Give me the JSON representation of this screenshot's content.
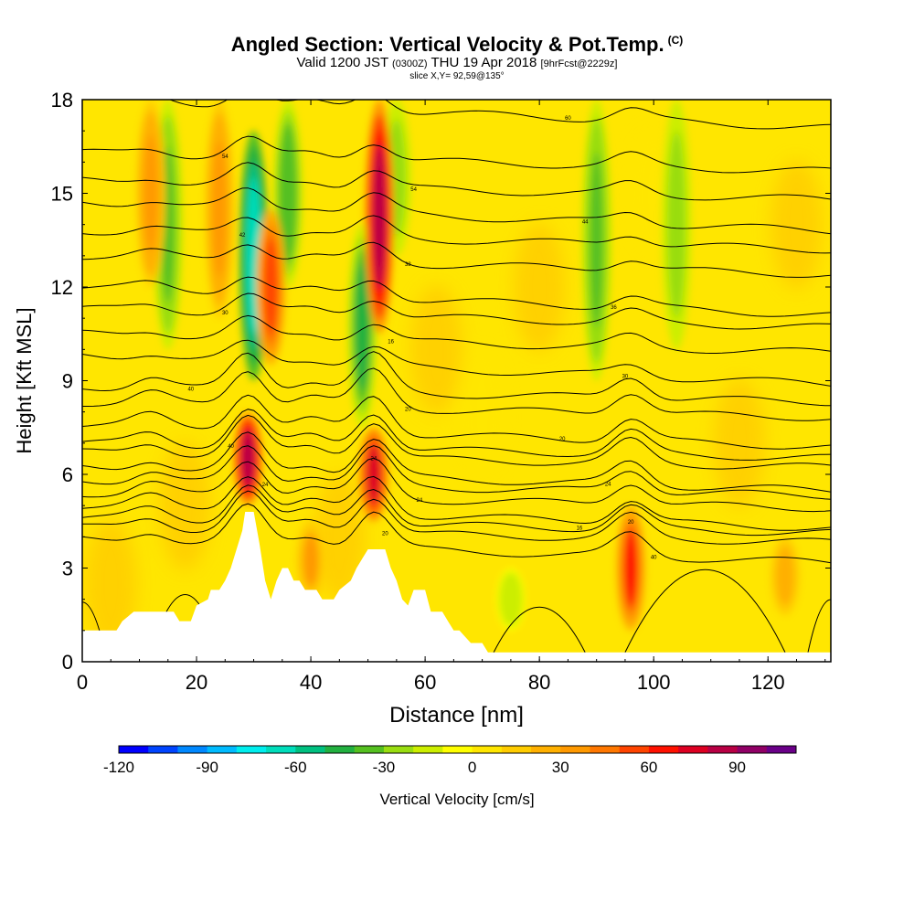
{
  "header": {
    "title": "Angled Section: Vertical Velocity & Pot.Temp.",
    "title_unit": "(C)",
    "valid_prefix": "Valid 1200 JST",
    "valid_utc": "(0300Z)",
    "valid_date": "THU 19 Apr 2018",
    "forecast": "[9hrFcst@2229z]",
    "slice": "slice X,Y= 92,59@135°"
  },
  "chart_data": {
    "type": "heatmap",
    "xlabel": "Distance [nm]",
    "ylabel": "Height [Kft MSL]",
    "xlim": [
      0,
      131
    ],
    "ylim": [
      0,
      18
    ],
    "xticks": [
      0,
      20,
      40,
      60,
      80,
      100,
      120
    ],
    "yticks": [
      0,
      3,
      6,
      9,
      12,
      15,
      18
    ],
    "colorbar": {
      "label": "Vertical Velocity [cm/s]",
      "ticks": [
        -120,
        -90,
        -60,
        -30,
        0,
        30,
        60,
        90
      ],
      "range": [
        -120,
        110
      ],
      "colors": [
        "#0000ff",
        "#0044ff",
        "#0088ff",
        "#00bbff",
        "#00eeee",
        "#00ddbb",
        "#00c080",
        "#22b040",
        "#55c020",
        "#99dd11",
        "#ccee00",
        "#ffff00",
        "#ffe600",
        "#ffcc00",
        "#ffb000",
        "#ff9900",
        "#ff7700",
        "#ff4400",
        "#ff1100",
        "#dd0022",
        "#b80044",
        "#900066",
        "#6a0088"
      ]
    },
    "updrafts": [
      {
        "x": 29,
        "z_min": 5.0,
        "z_max": 8.0,
        "w": 85
      },
      {
        "x": 51,
        "z_min": 4.5,
        "z_max": 7.5,
        "w": 70
      },
      {
        "x": 52,
        "z_min": 10.5,
        "z_max": 18,
        "w": 80
      },
      {
        "x": 33,
        "z_min": 9.5,
        "z_max": 14.5,
        "w": 50
      },
      {
        "x": 96,
        "z_min": 1.0,
        "z_max": 5.0,
        "w": 60
      },
      {
        "x": 24,
        "z_min": 11.0,
        "z_max": 18,
        "w": 35
      },
      {
        "x": 12,
        "z_min": 12.0,
        "z_max": 18,
        "w": 35
      },
      {
        "x": 40,
        "z_min": 2.0,
        "z_max": 4.5,
        "w": 30
      },
      {
        "x": 123,
        "z_min": 1.5,
        "z_max": 4.0,
        "w": 25
      }
    ],
    "downdrafts": [
      {
        "x": 30,
        "z_min": 9.0,
        "z_max": 17.0,
        "w": -70
      },
      {
        "x": 49,
        "z_min": 7.5,
        "z_max": 14.0,
        "w": -45
      },
      {
        "x": 15,
        "z_min": 10.0,
        "z_max": 18,
        "w": -35
      },
      {
        "x": 36,
        "z_min": 12.0,
        "z_max": 18,
        "w": -40
      },
      {
        "x": 90,
        "z_min": 9.0,
        "z_max": 18,
        "w": -35
      },
      {
        "x": 104,
        "z_min": 10.0,
        "z_max": 18,
        "w": -30
      },
      {
        "x": 75,
        "z_min": 1.0,
        "z_max": 3.0,
        "w": -20
      },
      {
        "x": 55,
        "z_min": 13.0,
        "z_max": 18,
        "w": -25
      }
    ],
    "terrain": [
      [
        0,
        1.0
      ],
      [
        6,
        1.0
      ],
      [
        7,
        1.3
      ],
      [
        9,
        1.6
      ],
      [
        16,
        1.6
      ],
      [
        17,
        1.3
      ],
      [
        19,
        1.3
      ],
      [
        20,
        1.8
      ],
      [
        22,
        2.0
      ],
      [
        22.5,
        2.3
      ],
      [
        24,
        2.3
      ],
      [
        25,
        2.6
      ],
      [
        26,
        3.0
      ],
      [
        27,
        3.6
      ],
      [
        28,
        4.2
      ],
      [
        28.5,
        4.8
      ],
      [
        30,
        4.8
      ],
      [
        31,
        3.8
      ],
      [
        32,
        2.6
      ],
      [
        33,
        2.0
      ],
      [
        34,
        2.6
      ],
      [
        35,
        3.0
      ],
      [
        36,
        3.0
      ],
      [
        37,
        2.6
      ],
      [
        38,
        2.6
      ],
      [
        39,
        2.3
      ],
      [
        40,
        2.3
      ],
      [
        41,
        2.3
      ],
      [
        42,
        2.0
      ],
      [
        44,
        2.0
      ],
      [
        45,
        2.3
      ],
      [
        47,
        2.6
      ],
      [
        48,
        3.0
      ],
      [
        49,
        3.3
      ],
      [
        50,
        3.6
      ],
      [
        53,
        3.6
      ],
      [
        54,
        3.0
      ],
      [
        55,
        2.6
      ],
      [
        56,
        2.0
      ],
      [
        57,
        1.8
      ],
      [
        58,
        2.3
      ],
      [
        60,
        2.3
      ],
      [
        61,
        1.6
      ],
      [
        63,
        1.6
      ],
      [
        64,
        1.3
      ],
      [
        65,
        1.0
      ],
      [
        66,
        1.0
      ],
      [
        68,
        0.6
      ],
      [
        70,
        0.6
      ],
      [
        71,
        0.3
      ],
      [
        72,
        0.3
      ],
      [
        74,
        0.3
      ],
      [
        131,
        0.3
      ]
    ],
    "isentropes": [
      {
        "y_left": 18.0,
        "label": "60",
        "label_x": 85
      },
      {
        "y_left": 16.3,
        "label": "54",
        "label_x": 25
      },
      {
        "y_left": 15.4,
        "label": "54",
        "label_x": 58
      },
      {
        "y_left": 14.7,
        "label": "44",
        "label_x": 88
      },
      {
        "y_left": 13.8,
        "label": "42",
        "label_x": 28
      },
      {
        "y_left": 13.0,
        "label": "38",
        "label_x": 57
      },
      {
        "y_left": 12.0,
        "label": "36",
        "label_x": 93
      },
      {
        "y_left": 11.3,
        "label": "30",
        "label_x": 25
      },
      {
        "y_left": 10.5,
        "label": "16",
        "label_x": 54
      },
      {
        "y_left": 9.8,
        "label": "30",
        "label_x": 95
      },
      {
        "y_left": 8.8,
        "label": "40",
        "label_x": 19
      },
      {
        "y_left": 8.3,
        "label": "20",
        "label_x": 57
      },
      {
        "y_left": 7.6,
        "label": "20",
        "label_x": 84
      },
      {
        "y_left": 7.0,
        "label": "40",
        "label_x": 26
      },
      {
        "y_left": 6.7,
        "label": "24",
        "label_x": 51
      },
      {
        "y_left": 6.2,
        "label": "24",
        "label_x": 92
      },
      {
        "y_left": 5.8,
        "label": "24",
        "label_x": 32
      },
      {
        "y_left": 5.4,
        "label": "24",
        "label_x": 59
      },
      {
        "y_left": 5.0,
        "label": "20",
        "label_x": 96
      },
      {
        "y_left": 4.6,
        "label": "16",
        "label_x": 87
      },
      {
        "y_left": 4.3,
        "label": "20",
        "label_x": 53
      },
      {
        "y_left": 3.9,
        "label": "40",
        "label_x": 100
      }
    ]
  }
}
